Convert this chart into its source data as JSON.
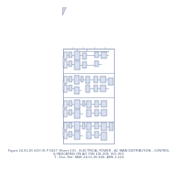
{
  "bg_color": "#ffffff",
  "title_lines": [
    "Figure 24-51-05 SCH 05 P 0027 (Sheet 1/2) - ELECTRICAL POWER - AC MAIN DISTRIBUTION - CONTROL",
    "& INDICATING ON A/C FSN 156-200, 301-350",
    "T - Doc. Ref: TASK 24-51-05-040, AMS 2-104"
  ],
  "title_fontsize": 2.8,
  "line_color": "#8090aa",
  "box_face": "#e8ecf5",
  "box_edge": "#6878a0",
  "box_face2": "#d8e0f0",
  "border_color": "#8090b0"
}
